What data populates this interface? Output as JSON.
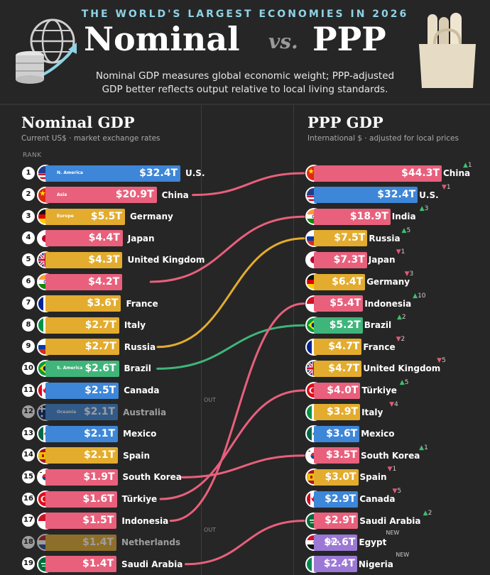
{
  "header": {
    "kicker": "THE WORLD'S LARGEST ECONOMIES IN 2026",
    "title_left": "Nominal",
    "title_vs": "vs.",
    "title_right": "PPP",
    "subtitle_line1": "Nominal GDP measures global economic weight; PPP-adjusted",
    "subtitle_line2": "GDP better reflects output relative to local living standards."
  },
  "colors": {
    "north_america": "#3d86d8",
    "asia": "#e8607c",
    "europe": "#e3ac2e",
    "oceania": "#3d86d8",
    "south_america": "#3fb57a",
    "africa": "#9b78d6"
  },
  "chart_data": {
    "type": "bar",
    "nominal": {
      "title": "Nominal GDP",
      "subtitle": "Current US$ · market exchange rates",
      "rank_label": "RANK",
      "unit": "Trillion USD",
      "rows": [
        {
          "rank": "1",
          "country": "U.S.",
          "value": 32.4,
          "label": "$32.4T",
          "region": "N. America",
          "color": "#3d86d8",
          "flag": "us-flag-icon"
        },
        {
          "rank": "2",
          "country": "China",
          "value": 20.9,
          "label": "$20.9T",
          "region": "Asia",
          "color": "#e8607c",
          "flag": "china-flag-icon"
        },
        {
          "rank": "3",
          "country": "Germany",
          "value": 5.5,
          "label": "$5.5T",
          "region": "Europe",
          "color": "#e3ac2e",
          "flag": "germany-flag-icon"
        },
        {
          "rank": "4",
          "country": "Japan",
          "value": 4.4,
          "label": "$4.4T",
          "color": "#e8607c",
          "flag": "japan-flag-icon"
        },
        {
          "rank": "5",
          "country": "United Kingdom",
          "value": 4.3,
          "label": "$4.3T",
          "color": "#e3ac2e",
          "flag": "uk-flag-icon"
        },
        {
          "rank": "6",
          "country": "",
          "value": 4.2,
          "label": "$4.2T",
          "color": "#e8607c",
          "flag": "india-flag-icon"
        },
        {
          "rank": "7",
          "country": "France",
          "value": 3.6,
          "label": "$3.6T",
          "color": "#e3ac2e",
          "flag": "france-flag-icon"
        },
        {
          "rank": "8",
          "country": "Italy",
          "value": 2.7,
          "label": "$2.7T",
          "color": "#e3ac2e",
          "flag": "italy-flag-icon"
        },
        {
          "rank": "9",
          "country": "Russia",
          "value": 2.7,
          "label": "$2.7T",
          "color": "#e3ac2e",
          "flag": "russia-flag-icon"
        },
        {
          "rank": "10",
          "country": "Brazil",
          "value": 2.6,
          "label": "$2.6T",
          "region": "S. America",
          "color": "#3fb57a",
          "flag": "brazil-flag-icon"
        },
        {
          "rank": "11",
          "country": "Canada",
          "value": 2.5,
          "label": "$2.5T",
          "color": "#3d86d8",
          "flag": "canada-flag-icon"
        },
        {
          "rank": "12",
          "country": "Australia",
          "value": 2.1,
          "label": "$2.1T",
          "region": "Oceania",
          "color": "#3d86d8",
          "flag": "australia-flag-icon",
          "dim": true
        },
        {
          "rank": "13",
          "country": "Mexico",
          "value": 2.1,
          "label": "$2.1T",
          "color": "#3d86d8",
          "flag": "mexico-flag-icon"
        },
        {
          "rank": "14",
          "country": "Spain",
          "value": 2.1,
          "label": "$2.1T",
          "color": "#e3ac2e",
          "flag": "spain-flag-icon"
        },
        {
          "rank": "15",
          "country": "South Korea",
          "value": 1.9,
          "label": "$1.9T",
          "color": "#e8607c",
          "flag": "south-korea-flag-icon"
        },
        {
          "rank": "16",
          "country": "Türkiye",
          "value": 1.6,
          "label": "$1.6T",
          "color": "#e8607c",
          "flag": "turkiye-flag-icon"
        },
        {
          "rank": "17",
          "country": "Indonesia",
          "value": 1.5,
          "label": "$1.5T",
          "color": "#e8607c",
          "flag": "indonesia-flag-icon"
        },
        {
          "rank": "18",
          "country": "Netherlands",
          "value": 1.4,
          "label": "$1.4T",
          "color": "#e3ac2e",
          "flag": "netherlands-flag-icon",
          "dim": true
        },
        {
          "rank": "19",
          "country": "Saudi Arabia",
          "value": 1.4,
          "label": "$1.4T",
          "color": "#e8607c",
          "flag": "saudi-arabia-flag-icon"
        }
      ]
    },
    "ppp": {
      "title": "PPP GDP",
      "subtitle": "International $ · adjusted for local prices",
      "unit": "Trillion international $",
      "rows": [
        {
          "country": "China",
          "value": 44.3,
          "label": "$44.3T",
          "color": "#e8607c",
          "change": "up",
          "change_n": "1",
          "flag": "china-flag-icon"
        },
        {
          "country": "U.S.",
          "value": 32.4,
          "label": "$32.4T",
          "color": "#3d86d8",
          "change": "down",
          "change_n": "1",
          "flag": "us-flag-icon"
        },
        {
          "country": "India",
          "value": 18.9,
          "label": "$18.9T",
          "color": "#e8607c",
          "change": "up",
          "change_n": "3",
          "flag": "india-flag-icon"
        },
        {
          "country": "Russia",
          "value": 7.5,
          "label": "$7.5T",
          "color": "#e3ac2e",
          "change": "up",
          "change_n": "5",
          "flag": "russia-flag-icon"
        },
        {
          "country": "Japan",
          "value": 7.3,
          "label": "$7.3T",
          "color": "#e8607c",
          "change": "down",
          "change_n": "1",
          "flag": "japan-flag-icon"
        },
        {
          "country": "Germany",
          "value": 6.4,
          "label": "$6.4T",
          "color": "#e3ac2e",
          "change": "down",
          "change_n": "3",
          "flag": "germany-flag-icon"
        },
        {
          "country": "Indonesia",
          "value": 5.4,
          "label": "$5.4T",
          "color": "#e8607c",
          "change": "up",
          "change_n": "10",
          "flag": "indonesia-flag-icon"
        },
        {
          "country": "Brazil",
          "value": 5.2,
          "label": "$5.2T",
          "color": "#3fb57a",
          "change": "up",
          "change_n": "2",
          "flag": "brazil-flag-icon"
        },
        {
          "country": "France",
          "value": 4.7,
          "label": "$4.7T",
          "color": "#e3ac2e",
          "change": "down",
          "change_n": "2",
          "flag": "france-flag-icon"
        },
        {
          "country": "United Kingdom",
          "value": 4.7,
          "label": "$4.7T",
          "color": "#e3ac2e",
          "change": "down",
          "change_n": "5",
          "flag": "uk-flag-icon"
        },
        {
          "country": "Türkiye",
          "value": 4.0,
          "label": "$4.0T",
          "color": "#e8607c",
          "change": "up",
          "change_n": "5",
          "flag": "turkiye-flag-icon"
        },
        {
          "country": "Italy",
          "value": 3.9,
          "label": "$3.9T",
          "color": "#e3ac2e",
          "change": "down",
          "change_n": "4",
          "flag": "italy-flag-icon"
        },
        {
          "country": "Mexico",
          "value": 3.6,
          "label": "$3.6T",
          "color": "#3d86d8",
          "change": "",
          "change_n": "",
          "flag": "mexico-flag-icon"
        },
        {
          "country": "South Korea",
          "value": 3.5,
          "label": "$3.5T",
          "color": "#e8607c",
          "change": "up",
          "change_n": "1",
          "flag": "south-korea-flag-icon"
        },
        {
          "country": "Spain",
          "value": 3.0,
          "label": "$3.0T",
          "color": "#e3ac2e",
          "change": "down",
          "change_n": "1",
          "flag": "spain-flag-icon"
        },
        {
          "country": "Canada",
          "value": 2.9,
          "label": "$2.9T",
          "color": "#3d86d8",
          "change": "down",
          "change_n": "5",
          "flag": "canada-flag-icon"
        },
        {
          "country": "Saudi Arabia",
          "value": 2.9,
          "label": "$2.9T",
          "color": "#e8607c",
          "change": "up",
          "change_n": "2",
          "flag": "saudi-arabia-flag-icon"
        },
        {
          "country": "Egypt",
          "value": 2.6,
          "label": "$2.6T",
          "region": "Africa",
          "color": "#9b78d6",
          "change": "new",
          "change_n": "NEW",
          "flag": "egypt-flag-icon"
        },
        {
          "country": "Nigeria",
          "value": 2.4,
          "label": "$2.4T",
          "color": "#9b78d6",
          "change": "new",
          "change_n": "NEW",
          "flag": "nigeria-flag-icon"
        }
      ]
    },
    "out_labels": [
      {
        "after_nominal_rank": "12",
        "text": "OUT"
      },
      {
        "after_nominal_rank": "18",
        "text": "OUT"
      }
    ],
    "links": [
      {
        "from": "China",
        "to": "China",
        "color": "#e8607c"
      },
      {
        "from": "",
        "to": "India",
        "color": "#e8607c"
      },
      {
        "from": "Russia",
        "to": "Russia",
        "color": "#e3ac2e"
      },
      {
        "from": "Brazil",
        "to": "Brazil",
        "color": "#3fb57a"
      },
      {
        "from": "South Korea",
        "to": "South Korea",
        "color": "#e8607c"
      },
      {
        "from": "Türkiye",
        "to": "Türkiye",
        "color": "#e8607c"
      },
      {
        "from": "Indonesia",
        "to": "Indonesia",
        "color": "#e8607c"
      },
      {
        "from": "Saudi Arabia",
        "to": "Saudi Arabia",
        "color": "#e8607c"
      }
    ]
  }
}
